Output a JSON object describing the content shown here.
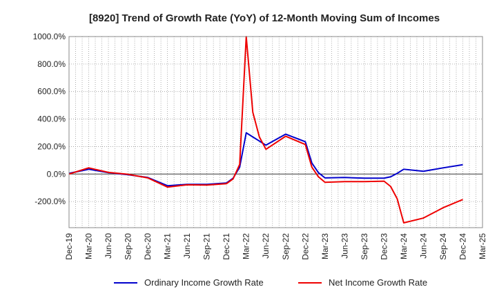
{
  "chart_data": {
    "type": "line",
    "title": "[8920]  Trend of Growth Rate (YoY) of 12-Month Moving Sum of Incomes",
    "xlabel": "",
    "ylabel": "",
    "ylim": [
      -390,
      1000
    ],
    "y_ticks": [
      1000,
      800,
      600,
      400,
      200,
      0,
      -200
    ],
    "y_tick_labels": [
      "1000.0%",
      "800.0%",
      "600.0%",
      "400.0%",
      "200.0%",
      "0.0%",
      "-200.0%"
    ],
    "x_range": [
      "2019-12",
      "2025-03"
    ],
    "x_tick_labels": [
      "Dec-19",
      "Mar-20",
      "Jun-20",
      "Sep-20",
      "Dec-20",
      "Mar-21",
      "Jun-21",
      "Sep-21",
      "Dec-21",
      "Mar-22",
      "Jun-22",
      "Sep-22",
      "Dec-22",
      "Mar-23",
      "Jun-23",
      "Sep-23",
      "Dec-23",
      "Mar-24",
      "Jun-24",
      "Sep-24",
      "Dec-24",
      "Mar-25"
    ],
    "grid": true,
    "legend_position": "bottom",
    "series": [
      {
        "name": "Ordinary Income Growth Rate",
        "color": "#0000cc",
        "points": [
          [
            "2019-12",
            5
          ],
          [
            "2020-03",
            35
          ],
          [
            "2020-06",
            10
          ],
          [
            "2020-09",
            -5
          ],
          [
            "2020-12",
            -25
          ],
          [
            "2021-03",
            -85
          ],
          [
            "2021-06",
            -75
          ],
          [
            "2021-09",
            -75
          ],
          [
            "2021-12",
            -65
          ],
          [
            "2022-01",
            -30
          ],
          [
            "2022-02",
            50
          ],
          [
            "2022-03",
            300
          ],
          [
            "2022-04",
            270
          ],
          [
            "2022-05",
            240
          ],
          [
            "2022-06",
            210
          ],
          [
            "2022-09",
            290
          ],
          [
            "2022-12",
            235
          ],
          [
            "2023-01",
            80
          ],
          [
            "2023-02",
            10
          ],
          [
            "2023-03",
            -28
          ],
          [
            "2023-06",
            -25
          ],
          [
            "2023-09",
            -30
          ],
          [
            "2023-12",
            -30
          ],
          [
            "2024-01",
            -20
          ],
          [
            "2024-02",
            5
          ],
          [
            "2024-03",
            35
          ],
          [
            "2024-06",
            20
          ],
          [
            "2024-09",
            45
          ],
          [
            "2024-12",
            68
          ]
        ]
      },
      {
        "name": "Net Income Growth Rate",
        "color": "#ee0000",
        "points": [
          [
            "2019-12",
            0
          ],
          [
            "2020-03",
            45
          ],
          [
            "2020-06",
            12
          ],
          [
            "2020-09",
            -2
          ],
          [
            "2020-12",
            -28
          ],
          [
            "2021-03",
            -95
          ],
          [
            "2021-06",
            -78
          ],
          [
            "2021-09",
            -80
          ],
          [
            "2021-12",
            -70
          ],
          [
            "2022-01",
            -35
          ],
          [
            "2022-02",
            70
          ],
          [
            "2022-03",
            1000
          ],
          [
            "2022-04",
            450
          ],
          [
            "2022-05",
            270
          ],
          [
            "2022-06",
            180
          ],
          [
            "2022-09",
            275
          ],
          [
            "2022-12",
            215
          ],
          [
            "2023-01",
            50
          ],
          [
            "2023-02",
            -20
          ],
          [
            "2023-03",
            -60
          ],
          [
            "2023-06",
            -55
          ],
          [
            "2023-09",
            -55
          ],
          [
            "2023-12",
            -52
          ],
          [
            "2024-01",
            -90
          ],
          [
            "2024-02",
            -180
          ],
          [
            "2024-03",
            -355
          ],
          [
            "2024-06",
            -320
          ],
          [
            "2024-09",
            -245
          ],
          [
            "2024-12",
            -185
          ]
        ]
      }
    ]
  }
}
